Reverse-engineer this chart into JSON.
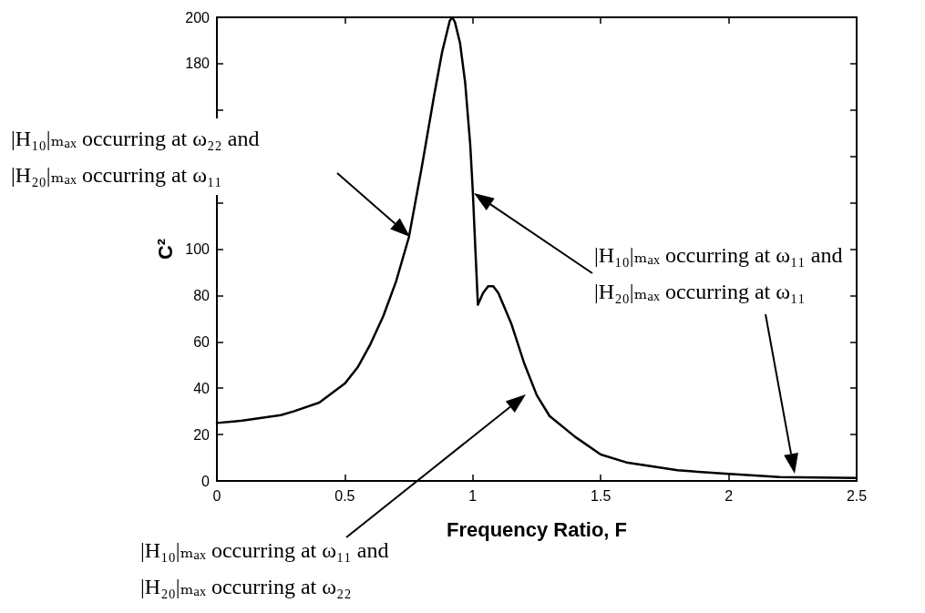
{
  "chart_data": {
    "type": "line",
    "xlabel": "Frequency Ratio, F",
    "ylabel": "C²",
    "series": [
      {
        "color": "#000000",
        "x": [
          0,
          0.1,
          0.25,
          0.3,
          0.4,
          0.5,
          0.55,
          0.6,
          0.65,
          0.7,
          0.75,
          0.8,
          0.85,
          0.88,
          0.9,
          0.91,
          0.92,
          0.93,
          0.95,
          0.97,
          0.99,
          1.0,
          1.01,
          1.02,
          1.04,
          1.06,
          1.08,
          1.1,
          1.15,
          1.2,
          1.25,
          1.3,
          1.4,
          1.5,
          1.6,
          1.8,
          2.0,
          2.2,
          2.5
        ],
        "values": [
          25,
          26,
          28.4,
          30,
          33.8,
          42,
          49,
          59,
          71,
          86,
          105,
          135,
          167,
          185,
          194,
          198.5,
          200,
          198,
          189,
          172,
          145,
          125,
          100,
          76,
          81,
          84,
          84,
          81,
          68,
          51,
          37,
          28,
          19,
          11.4,
          8,
          4.6,
          3,
          1.7,
          1.3
        ]
      }
    ],
    "xlim": [
      0,
      2.5
    ],
    "xticks": [
      0,
      0.5,
      1,
      1.5,
      2,
      2.5
    ],
    "ylim": [
      0,
      200
    ],
    "yticks": [
      0,
      20,
      40,
      60,
      80,
      100,
      {
        "value": 120,
        "label": null
      },
      {
        "value": 140,
        "label": null
      },
      {
        "value": 160,
        "label": null
      },
      180,
      200
    ],
    "grid": false,
    "marker": "none",
    "line_style": "solid",
    "annotations": [
      "|H₁₀|ₘₐₓ occurring at ω₂₂ and\n|H₂₀|ₘₐₓ occurring at ω₁₁",
      "|H₁₀|ₘₐₓ occurring at ω₁₁ and\n|H₂₀|ₘₐₓ occurring at ω₁₁",
      "|H₁₀|ₘₐₓ occurring at ω₁₁ and\n|H₂₀|ₘₐₓ occurring at ω₂₂"
    ]
  }
}
